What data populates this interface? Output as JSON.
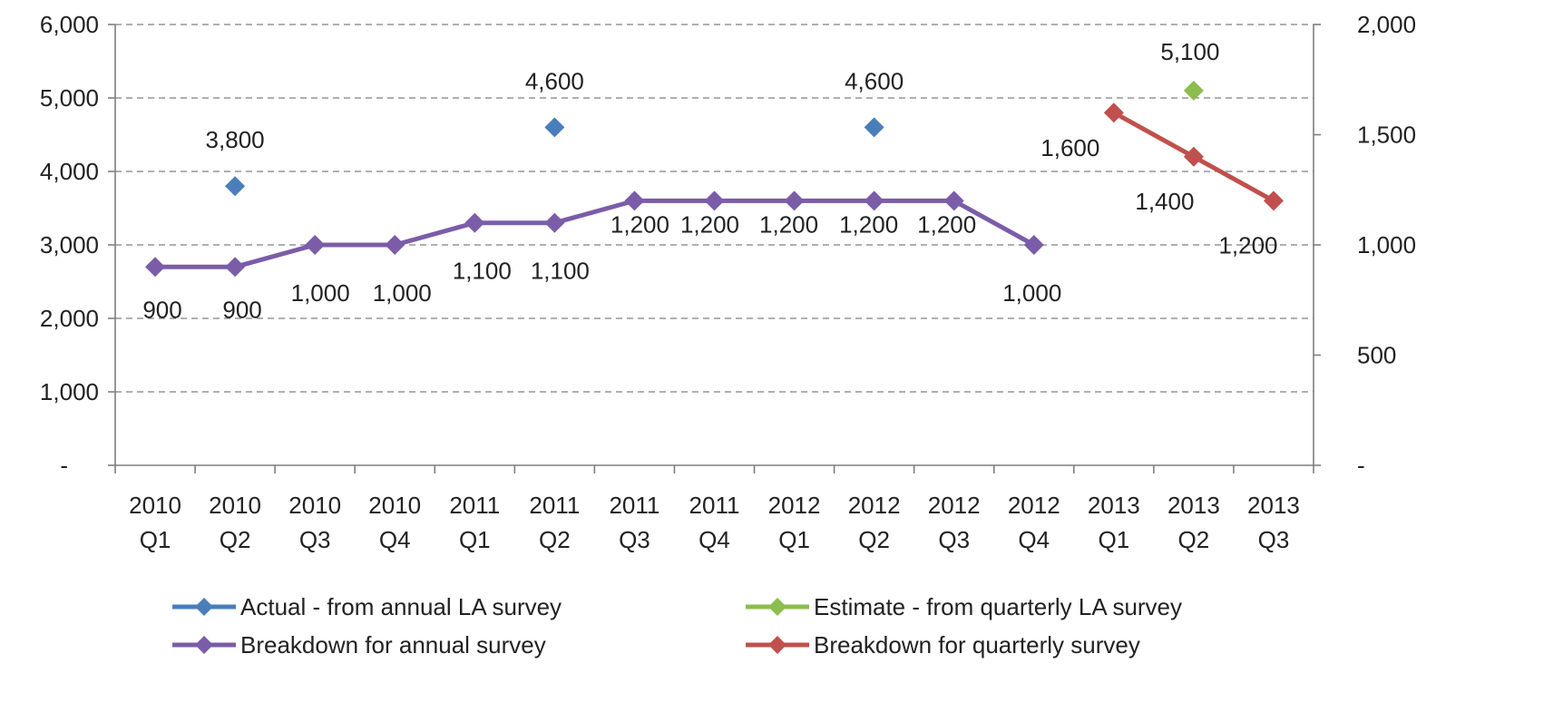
{
  "chart_data": {
    "type": "line",
    "categories": [
      [
        "2010",
        "Q1"
      ],
      [
        "2010",
        "Q2"
      ],
      [
        "2010",
        "Q3"
      ],
      [
        "2010",
        "Q4"
      ],
      [
        "2011",
        "Q1"
      ],
      [
        "2011",
        "Q2"
      ],
      [
        "2011",
        "Q3"
      ],
      [
        "2011",
        "Q4"
      ],
      [
        "2012",
        "Q1"
      ],
      [
        "2012",
        "Q2"
      ],
      [
        "2012",
        "Q3"
      ],
      [
        "2012",
        "Q4"
      ],
      [
        "2013",
        "Q1"
      ],
      [
        "2013",
        "Q2"
      ],
      [
        "2013",
        "Q3"
      ]
    ],
    "y_left": {
      "ylim": [
        0,
        6000
      ],
      "ticks": [
        0,
        1000,
        2000,
        3000,
        4000,
        5000,
        6000
      ],
      "tick_labels": [
        "-",
        "1,000",
        "2,000",
        "3,000",
        "4,000",
        "5,000",
        "6,000"
      ]
    },
    "y_right": {
      "ylim": [
        0,
        2000
      ],
      "ticks": [
        0,
        500,
        1000,
        1500,
        2000
      ],
      "tick_labels": [
        "-",
        "500",
        "1,000",
        "1,500",
        "2,000"
      ]
    },
    "grid": true,
    "legend_position": "bottom",
    "series": [
      {
        "name": "Actual - from annual LA survey",
        "axis": "left",
        "color": "#4a7ebb",
        "connected": false,
        "values": [
          null,
          3800,
          null,
          null,
          null,
          4600,
          null,
          null,
          null,
          4600,
          null,
          null,
          null,
          null,
          null
        ],
        "labels": [
          null,
          "3,800",
          null,
          null,
          null,
          "4,600",
          null,
          null,
          null,
          "4,600",
          null,
          null,
          null,
          null,
          null
        ]
      },
      {
        "name": "Estimate - from quarterly LA survey",
        "axis": "left",
        "color": "#8cbd4f",
        "connected": false,
        "values": [
          null,
          null,
          null,
          null,
          null,
          null,
          null,
          null,
          null,
          null,
          null,
          null,
          null,
          5100,
          null
        ],
        "labels": [
          null,
          null,
          null,
          null,
          null,
          null,
          null,
          null,
          null,
          null,
          null,
          null,
          null,
          "5,100",
          null
        ]
      },
      {
        "name": "Breakdown for annual survey",
        "axis": "right",
        "color": "#7b5ca8",
        "connected": true,
        "values": [
          900,
          900,
          1000,
          1000,
          1100,
          1100,
          1200,
          1200,
          1200,
          1200,
          1200,
          1000,
          null,
          null,
          null
        ],
        "labels": [
          "900",
          "900",
          "1,000",
          "1,000",
          "1,100",
          "1,100",
          "1,200",
          "1,200",
          "1,200",
          "1,200",
          "1,200",
          "1,000",
          null,
          null,
          null
        ]
      },
      {
        "name": "Breakdown for quarterly survey",
        "axis": "right",
        "color": "#c0504d",
        "connected": true,
        "values": [
          null,
          null,
          null,
          null,
          null,
          null,
          null,
          null,
          null,
          null,
          null,
          null,
          1600,
          1400,
          1200
        ],
        "labels": [
          null,
          null,
          null,
          null,
          null,
          null,
          null,
          null,
          null,
          null,
          null,
          null,
          "1,600",
          "1,400",
          "1,200"
        ]
      }
    ]
  }
}
